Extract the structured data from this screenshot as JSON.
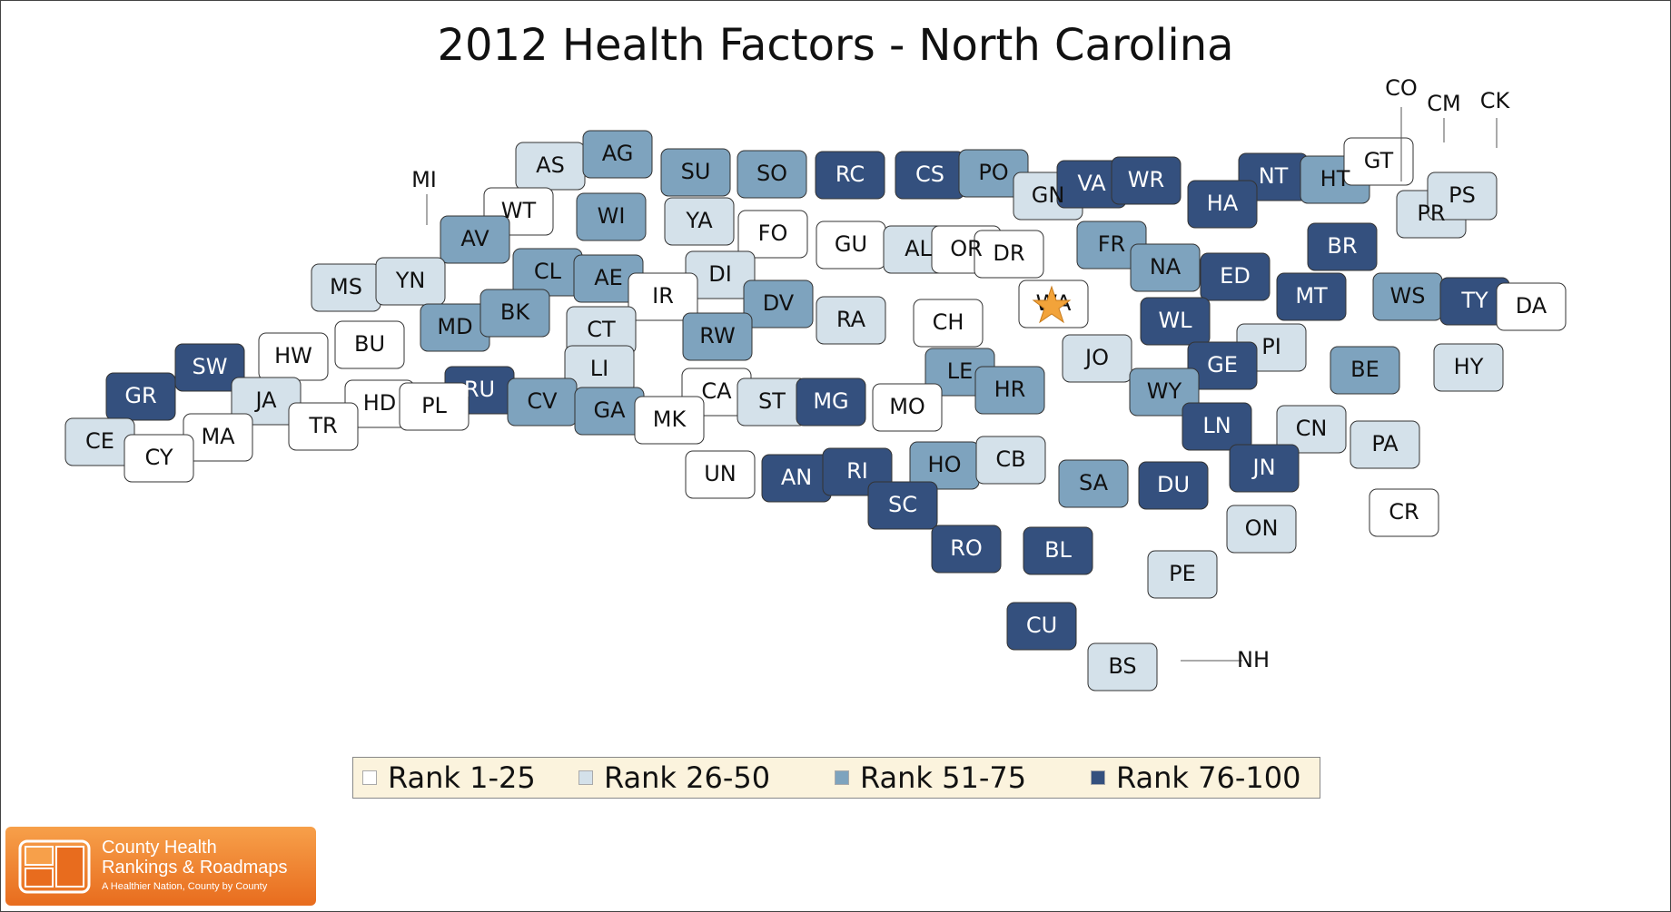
{
  "title": "2012 Health Factors - North Carolina",
  "colors": {
    "rank_1_25": "#ffffff",
    "rank_26_50": "#d4e1ea",
    "rank_51_75": "#7ea3be",
    "rank_76_100": "#34507e",
    "border": "#333333",
    "star": "#f2a33a"
  },
  "legend": [
    {
      "label": "Rank 1-25",
      "color": "#ffffff"
    },
    {
      "label": "Rank 26-50",
      "color": "#d4e1ea"
    },
    {
      "label": "Rank 51-75",
      "color": "#7ea3be"
    },
    {
      "label": "Rank 76-100",
      "color": "#34507e"
    }
  ],
  "logo": {
    "line1": "County Health",
    "line2": "Rankings & Roadmaps",
    "tagline": "A Healthier Nation, County by County"
  },
  "marker": {
    "county": "WA",
    "icon": "star-icon"
  },
  "counties": [
    {
      "code": "AS",
      "tier": 2
    },
    {
      "code": "AG",
      "tier": 3
    },
    {
      "code": "SU",
      "tier": 3
    },
    {
      "code": "SO",
      "tier": 3
    },
    {
      "code": "RC",
      "tier": 4
    },
    {
      "code": "CS",
      "tier": 4
    },
    {
      "code": "PO",
      "tier": 3
    },
    {
      "code": "GN",
      "tier": 2
    },
    {
      "code": "VA",
      "tier": 4
    },
    {
      "code": "WR",
      "tier": 4
    },
    {
      "code": "NT",
      "tier": 4
    },
    {
      "code": "HA",
      "tier": 4
    },
    {
      "code": "HT",
      "tier": 3
    },
    {
      "code": "GT",
      "tier": 1
    },
    {
      "code": "CO",
      "tier": 3
    },
    {
      "code": "CM",
      "tier": 2
    },
    {
      "code": "CK",
      "tier": 1
    },
    {
      "code": "PR",
      "tier": 2
    },
    {
      "code": "PS",
      "tier": 2
    },
    {
      "code": "WT",
      "tier": 1
    },
    {
      "code": "WI",
      "tier": 3
    },
    {
      "code": "YA",
      "tier": 2
    },
    {
      "code": "FO",
      "tier": 1
    },
    {
      "code": "GU",
      "tier": 1
    },
    {
      "code": "AL",
      "tier": 2
    },
    {
      "code": "OR",
      "tier": 1
    },
    {
      "code": "DR",
      "tier": 1
    },
    {
      "code": "FR",
      "tier": 3
    },
    {
      "code": "NA",
      "tier": 3
    },
    {
      "code": "ED",
      "tier": 4
    },
    {
      "code": "BR",
      "tier": 4
    },
    {
      "code": "MT",
      "tier": 4
    },
    {
      "code": "WS",
      "tier": 3
    },
    {
      "code": "TY",
      "tier": 4
    },
    {
      "code": "DA",
      "tier": 1
    },
    {
      "code": "MI",
      "tier": 2
    },
    {
      "code": "AV",
      "tier": 3
    },
    {
      "code": "CL",
      "tier": 3
    },
    {
      "code": "AE",
      "tier": 3
    },
    {
      "code": "DI",
      "tier": 2
    },
    {
      "code": "DV",
      "tier": 3
    },
    {
      "code": "IR",
      "tier": 1
    },
    {
      "code": "RA",
      "tier": 2
    },
    {
      "code": "CH",
      "tier": 1
    },
    {
      "code": "WA",
      "tier": 1
    },
    {
      "code": "WL",
      "tier": 4
    },
    {
      "code": "MS",
      "tier": 2
    },
    {
      "code": "YN",
      "tier": 2
    },
    {
      "code": "MD",
      "tier": 3
    },
    {
      "code": "BK",
      "tier": 3
    },
    {
      "code": "CT",
      "tier": 2
    },
    {
      "code": "RW",
      "tier": 3
    },
    {
      "code": "JO",
      "tier": 2
    },
    {
      "code": "PI",
      "tier": 2
    },
    {
      "code": "BE",
      "tier": 3
    },
    {
      "code": "HY",
      "tier": 2
    },
    {
      "code": "SW",
      "tier": 4
    },
    {
      "code": "HW",
      "tier": 1
    },
    {
      "code": "BU",
      "tier": 1
    },
    {
      "code": "LI",
      "tier": 2
    },
    {
      "code": "LE",
      "tier": 3
    },
    {
      "code": "HR",
      "tier": 3
    },
    {
      "code": "GE",
      "tier": 4
    },
    {
      "code": "WY",
      "tier": 3
    },
    {
      "code": "GR",
      "tier": 4
    },
    {
      "code": "JA",
      "tier": 2
    },
    {
      "code": "RU",
      "tier": 4
    },
    {
      "code": "CA",
      "tier": 1
    },
    {
      "code": "ST",
      "tier": 2
    },
    {
      "code": "MG",
      "tier": 4
    },
    {
      "code": "MO",
      "tier": 1
    },
    {
      "code": "LN",
      "tier": 4
    },
    {
      "code": "CN",
      "tier": 2
    },
    {
      "code": "HD",
      "tier": 1
    },
    {
      "code": "PL",
      "tier": 1
    },
    {
      "code": "CV",
      "tier": 3
    },
    {
      "code": "GA",
      "tier": 3
    },
    {
      "code": "MK",
      "tier": 1
    },
    {
      "code": "TR",
      "tier": 1
    },
    {
      "code": "MA",
      "tier": 1
    },
    {
      "code": "CE",
      "tier": 2
    },
    {
      "code": "CY",
      "tier": 1
    },
    {
      "code": "UN",
      "tier": 1
    },
    {
      "code": "AN",
      "tier": 4
    },
    {
      "code": "RI",
      "tier": 4
    },
    {
      "code": "HO",
      "tier": 3
    },
    {
      "code": "CB",
      "tier": 2
    },
    {
      "code": "SA",
      "tier": 3
    },
    {
      "code": "DU",
      "tier": 4
    },
    {
      "code": "JN",
      "tier": 4
    },
    {
      "code": "PA",
      "tier": 2
    },
    {
      "code": "SC",
      "tier": 4
    },
    {
      "code": "CR",
      "tier": 1
    },
    {
      "code": "ON",
      "tier": 2
    },
    {
      "code": "RO",
      "tier": 4
    },
    {
      "code": "BL",
      "tier": 4
    },
    {
      "code": "PE",
      "tier": 2
    },
    {
      "code": "CU",
      "tier": 4
    },
    {
      "code": "BS",
      "tier": 2
    },
    {
      "code": "NH",
      "tier": 1
    }
  ]
}
